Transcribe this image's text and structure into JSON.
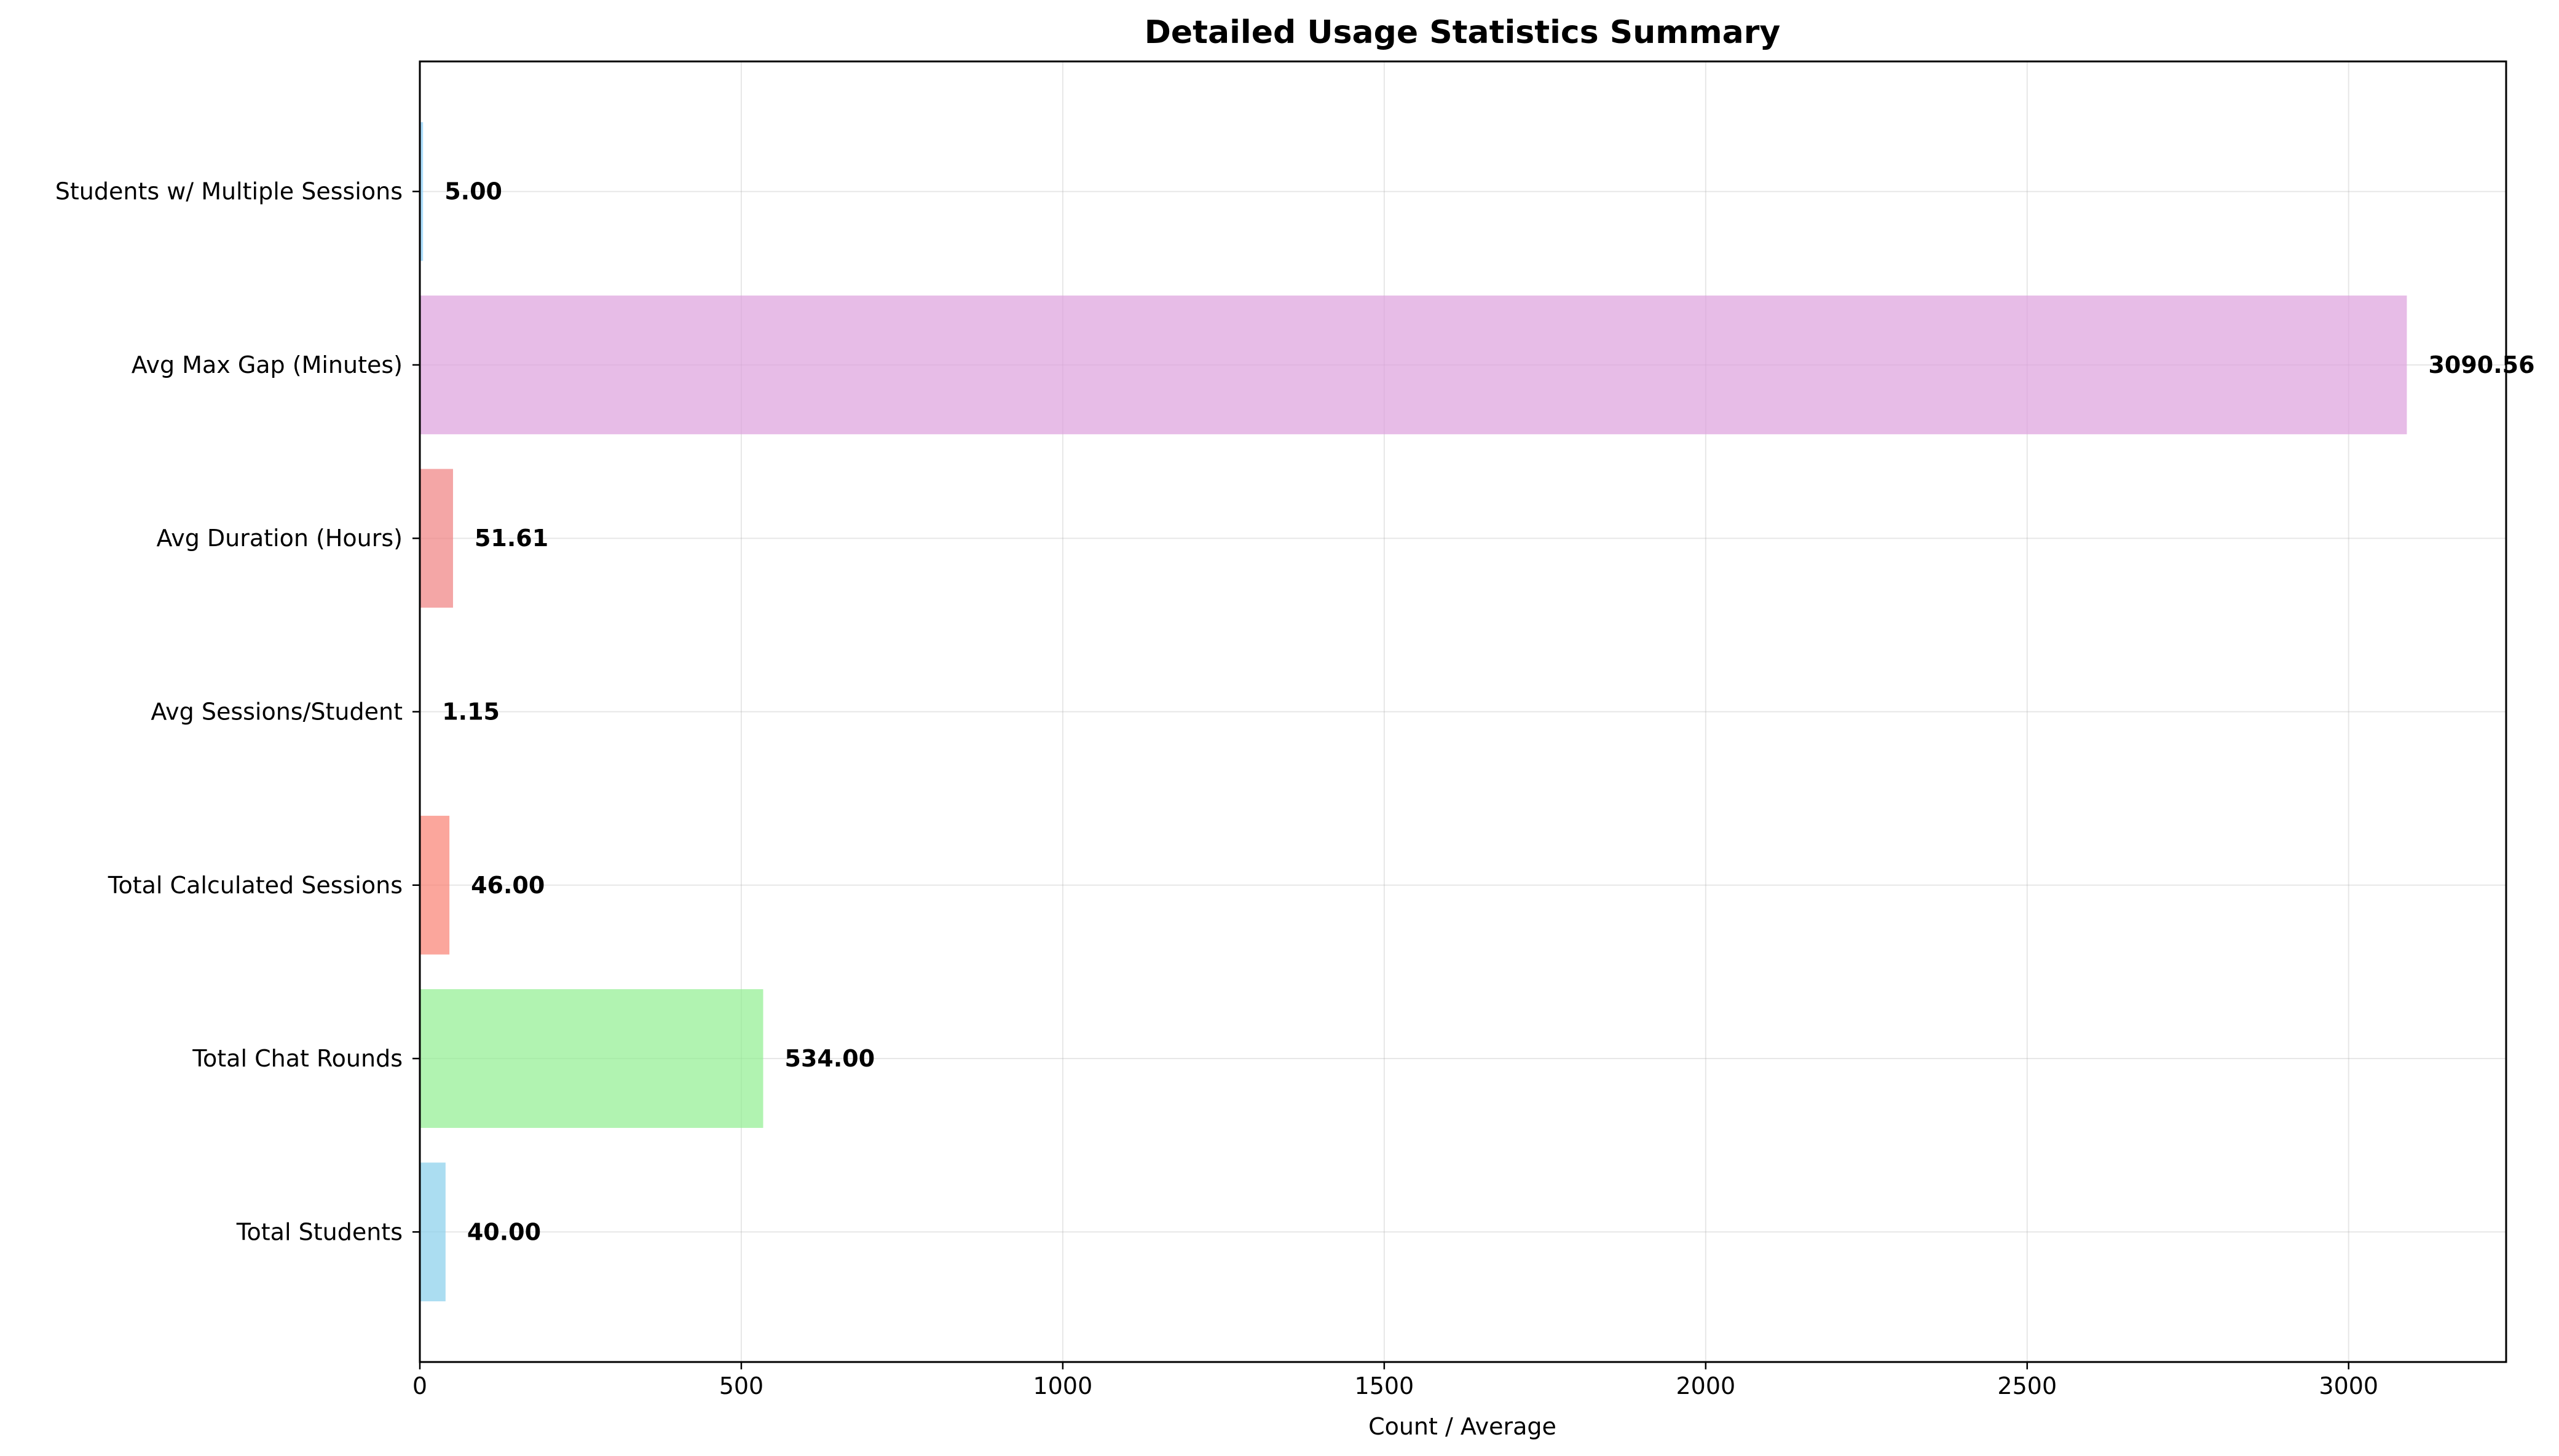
{
  "chart_data": {
    "type": "bar",
    "orientation": "horizontal",
    "title": "Detailed Usage Statistics Summary",
    "xlabel": "Count / Average",
    "ylabel": "",
    "xlim": [
      0,
      3245
    ],
    "xticks": [
      0,
      500,
      1000,
      1500,
      2000,
      2500,
      3000
    ],
    "grid": true,
    "categories": [
      "Total Students",
      "Total Chat Rounds",
      "Total Calculated Sessions",
      "Avg Sessions/Student",
      "Avg Duration (Hours)",
      "Avg Max Gap (Minutes)",
      "Students w/ Multiple Sessions"
    ],
    "values": [
      40.0,
      534.0,
      46.0,
      1.15,
      51.61,
      3090.56,
      5.0
    ],
    "value_labels": [
      "40.00",
      "534.00",
      "46.00",
      "1.15",
      "51.61",
      "3090.56",
      "5.00"
    ],
    "colors": [
      "#87ceeb",
      "#90ee90",
      "#fa8072",
      "#ffd700",
      "#f08080",
      "#dda0dd",
      "#87cefa"
    ]
  }
}
